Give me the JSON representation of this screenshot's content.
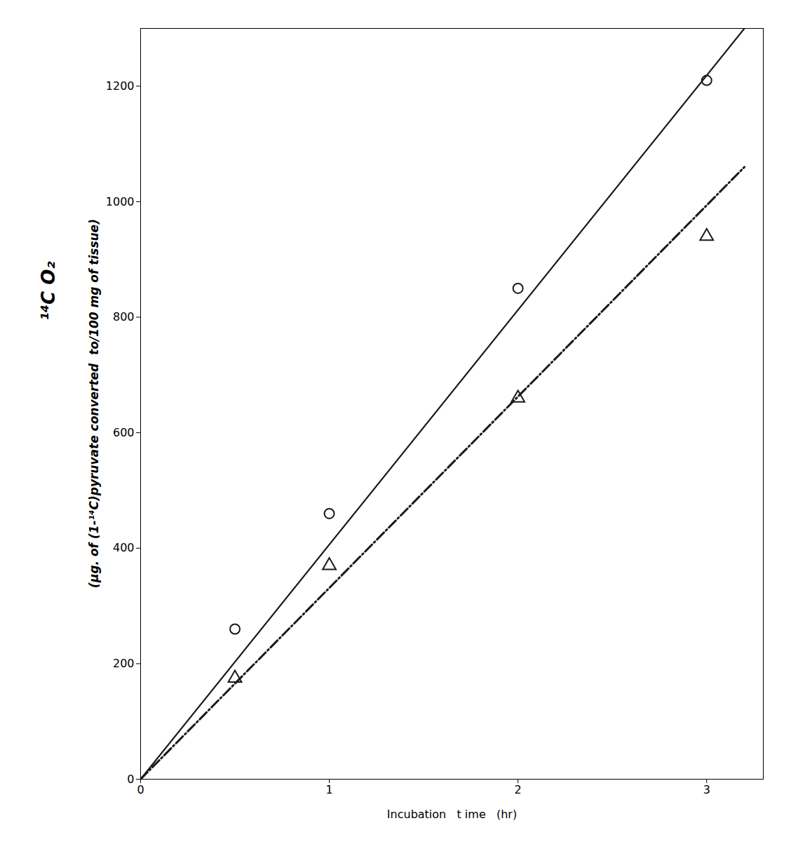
{
  "chart_data": {
    "type": "line",
    "xlabel": "Incubation   t ime   (hr)",
    "ylabel": [
      "¹⁴C O₂",
      "(μg. of (1-¹⁴C)pyruvate converted  to/100 mg of tissue)"
    ],
    "xlim": [
      0,
      3.3
    ],
    "ylim": [
      0,
      1300
    ],
    "xticks": [
      0,
      1,
      2,
      3
    ],
    "yticks": [
      0,
      200,
      400,
      600,
      800,
      1000,
      1200
    ],
    "grid": false,
    "series": [
      {
        "type": "line",
        "line_style": "solid",
        "color": "#1a1a1a",
        "x": [
          0,
          3.2
        ],
        "values": [
          0,
          1300
        ]
      },
      {
        "type": "scatter",
        "marker": "circle",
        "color": "#1a1a1a",
        "x": [
          0.5,
          1.0,
          2.0,
          3.0
        ],
        "values": [
          260,
          460,
          850,
          1210
        ]
      },
      {
        "type": "line",
        "line_style": "dashdot",
        "color": "#1a1a1a",
        "x": [
          0,
          3.2
        ],
        "values": [
          0,
          1060
        ]
      },
      {
        "type": "scatter",
        "marker": "triangle",
        "color": "#1a1a1a",
        "x": [
          0.5,
          1.0,
          2.0,
          3.0
        ],
        "values": [
          175,
          370,
          660,
          940
        ]
      }
    ]
  }
}
